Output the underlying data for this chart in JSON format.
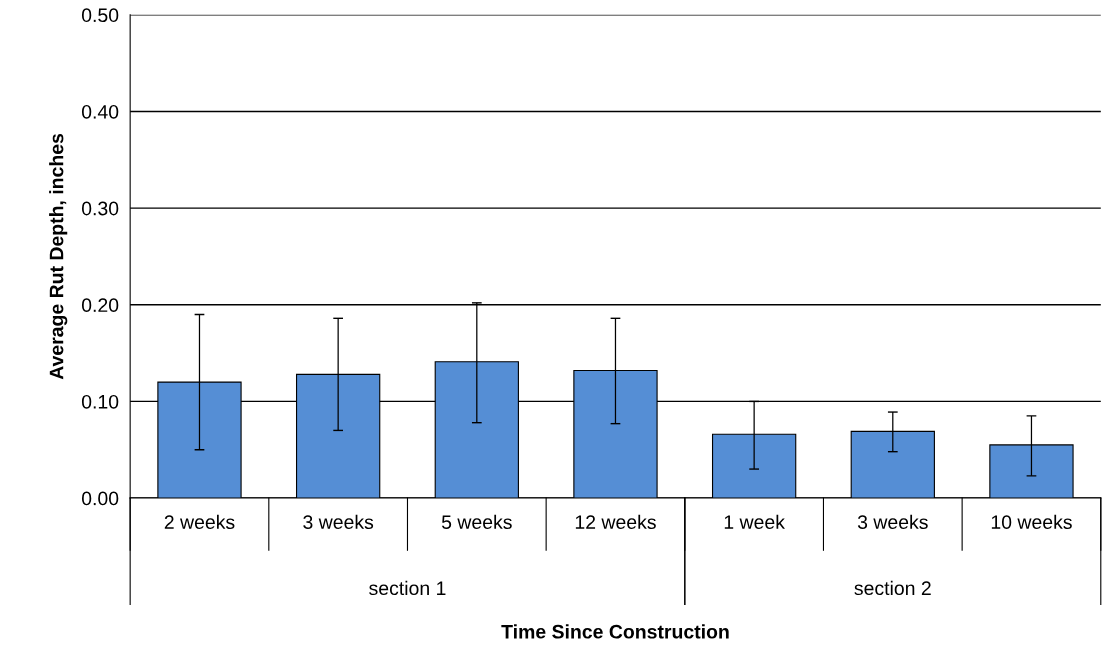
{
  "chart_data": {
    "type": "bar",
    "xlabel": "Time Since Construction",
    "ylabel": "Average Rut Depth, inches",
    "categories": [
      "2 weeks",
      "3 weeks",
      "5 weeks",
      "12 weeks",
      "1 week",
      "3 weeks",
      "10 weeks"
    ],
    "values": [
      0.12,
      0.128,
      0.141,
      0.132,
      0.066,
      0.069,
      0.055
    ],
    "errors": [
      [
        0.05,
        0.19
      ],
      [
        0.07,
        0.186
      ],
      [
        0.078,
        0.202
      ],
      [
        0.077,
        0.186
      ],
      [
        0.03,
        0.1
      ],
      [
        0.048,
        0.089
      ],
      [
        0.023,
        0.085
      ]
    ],
    "color": "#558ed5",
    "ylim": [
      0,
      0.5
    ],
    "yticks": [
      {
        "value": 0,
        "label": "0.00"
      },
      {
        "value": 0.1,
        "label": "0.10"
      },
      {
        "value": 0.2,
        "label": "0.20"
      },
      {
        "value": 0.3,
        "label": "0.30"
      },
      {
        "value": 0.4,
        "label": "0.40"
      },
      {
        "value": 0.5,
        "label": "0.50"
      }
    ],
    "grid": "y",
    "annotations": [
      "section 1",
      "section 2"
    ]
  }
}
